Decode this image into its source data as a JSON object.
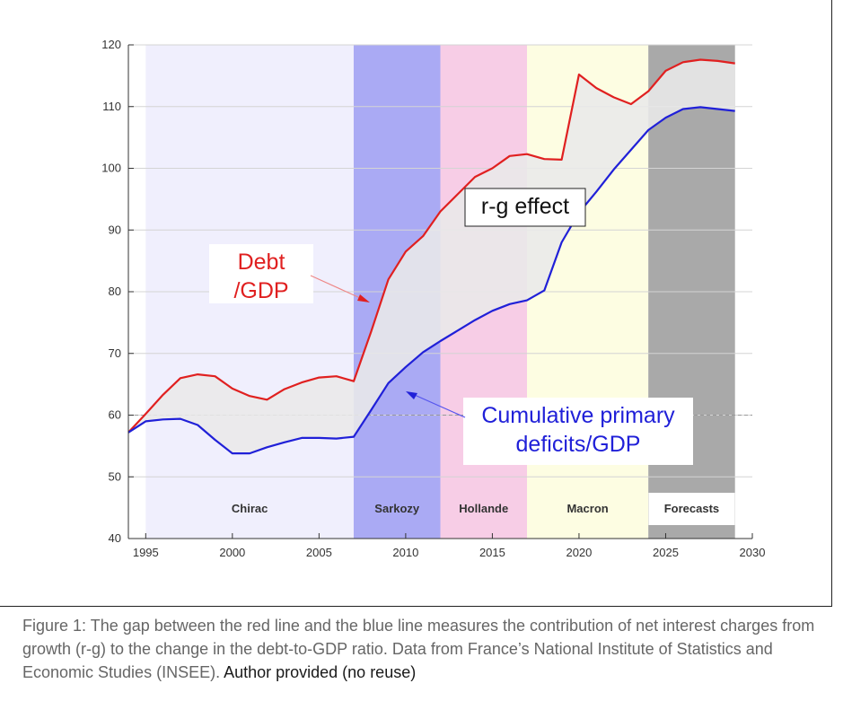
{
  "chart_data": {
    "type": "line",
    "title": "",
    "xlabel": "",
    "ylabel": "",
    "xlim": [
      1994,
      2030
    ],
    "ylim": [
      40,
      120
    ],
    "x_ticks": [
      1995,
      2000,
      2005,
      2010,
      2015,
      2020,
      2025,
      2030
    ],
    "y_ticks": [
      40,
      50,
      60,
      70,
      80,
      90,
      100,
      110,
      120
    ],
    "reference_line": 60,
    "periods": [
      {
        "name": "Chirac",
        "start": 1995,
        "end": 2007,
        "color": "#f0effd"
      },
      {
        "name": "Sarkozy",
        "start": 2007,
        "end": 2012,
        "color": "#aaaaf4"
      },
      {
        "name": "Hollande",
        "start": 2012,
        "end": 2017,
        "color": "#f7cde6"
      },
      {
        "name": "Macron",
        "start": 2017,
        "end": 2024,
        "color": "#fdfde2"
      },
      {
        "name": "Forecasts",
        "start": 2024,
        "end": 2029,
        "color": "#a9a9a9"
      }
    ],
    "series": [
      {
        "name": "Debt /GDP",
        "color": "#e02020",
        "x": [
          1994,
          1995,
          1996,
          1997,
          1998,
          1999,
          2000,
          2001,
          2002,
          2003,
          2004,
          2005,
          2006,
          2007,
          2008,
          2009,
          2010,
          2011,
          2012,
          2013,
          2014,
          2015,
          2016,
          2017,
          2018,
          2019,
          2020,
          2021,
          2022,
          2023,
          2024,
          2025,
          2026,
          2027,
          2028,
          2029
        ],
        "values": [
          57.2,
          60.2,
          63.3,
          66.0,
          66.6,
          66.3,
          64.3,
          63.1,
          62.5,
          64.2,
          65.3,
          66.1,
          66.3,
          65.5,
          73.5,
          82.0,
          86.5,
          89.0,
          93.0,
          95.8,
          98.6,
          100.0,
          102.0,
          102.3,
          101.5,
          101.4,
          115.2,
          113.0,
          111.5,
          110.4,
          112.5,
          115.8,
          117.2,
          117.6,
          117.4,
          117.0
        ]
      },
      {
        "name": "Cumulative primary deficits/GDP",
        "color": "#2020d8",
        "x": [
          1994,
          1995,
          1996,
          1997,
          1998,
          1999,
          2000,
          2001,
          2002,
          2003,
          2004,
          2005,
          2006,
          2007,
          2008,
          2009,
          2010,
          2011,
          2012,
          2013,
          2014,
          2015,
          2016,
          2017,
          2018,
          2019,
          2020,
          2021,
          2022,
          2023,
          2024,
          2025,
          2026,
          2027,
          2028,
          2029
        ],
        "values": [
          57.2,
          59.0,
          59.3,
          59.4,
          58.4,
          56.0,
          53.8,
          53.8,
          54.8,
          55.6,
          56.3,
          56.3,
          56.2,
          56.5,
          60.8,
          65.2,
          67.8,
          70.2,
          72.0,
          73.7,
          75.4,
          76.9,
          78.0,
          78.6,
          80.2,
          88.0,
          92.8,
          96.2,
          99.8,
          103.0,
          106.2,
          108.2,
          109.6,
          109.9,
          109.6,
          109.3
        ]
      }
    ],
    "annotations": {
      "debt": [
        "Debt",
        "/GDP"
      ],
      "gap": "r-g effect",
      "deficits": [
        "Cumulative primary",
        "deficits/GDP"
      ]
    }
  },
  "caption": {
    "text": "Figure 1: The gap between the red line and the blue line measures the contribution of net interest charges from growth (r-g) to the change in the debt-to-GDP ratio. Data from France’s National Institute of Statistics and Economic Studies (INSEE).",
    "credit": "Author provided (no reuse)"
  }
}
